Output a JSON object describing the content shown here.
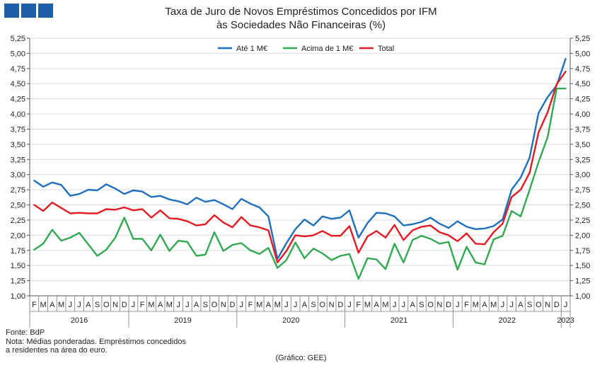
{
  "header": {
    "title_line1": "Taxa de Juro de Novos Empréstimos  Concedidos por IFM",
    "title_line2": "às Sociedades Não Financeiras (%)"
  },
  "footer": {
    "source": "Fonte: BdP",
    "note_line1": "Nota: Médias ponderadas. Empréstimos concedidos",
    "note_line2": "a residentes na área do euro.",
    "credit": "(Gráfico: GEE)"
  },
  "chart_data": {
    "type": "line",
    "ylim": [
      1.0,
      5.25
    ],
    "yticks": [
      "1,00",
      "1,25",
      "1,50",
      "1,75",
      "2,00",
      "2,25",
      "2,50",
      "2,75",
      "3,00",
      "3,25",
      "3,50",
      "3,75",
      "4,00",
      "4,25",
      "4,50",
      "4,75",
      "5,00",
      "5,25"
    ],
    "x_month_labels": [
      "F",
      "M",
      "A",
      "M",
      "J",
      "J",
      "A",
      "S",
      "O",
      "N",
      "D",
      "J",
      "F",
      "M",
      "A",
      "M",
      "J",
      "J",
      "A",
      "S",
      "O",
      "N",
      "D",
      "J",
      "F",
      "M",
      "A",
      "M",
      "J",
      "J",
      "A",
      "S",
      "O",
      "N",
      "D",
      "J",
      "F",
      "M",
      "A",
      "M",
      "J",
      "J",
      "A",
      "S",
      "O",
      "N",
      "D",
      "J",
      "F",
      "M",
      "A",
      "M",
      "J",
      "J",
      "A",
      "S",
      "O",
      "N",
      "D",
      "J"
    ],
    "x_year_groups": [
      {
        "label": "2016",
        "start": 0,
        "end": 10
      },
      {
        "label": "2019",
        "start": 11,
        "end": 22
      },
      {
        "label": "2020",
        "start": 23,
        "end": 34
      },
      {
        "label": "2021",
        "start": 35,
        "end": 46
      },
      {
        "label": "2022",
        "start": 47,
        "end": 58
      },
      {
        "label": "2023",
        "start": 59,
        "end": 59
      }
    ],
    "legend_position": "top-center",
    "series": [
      {
        "name": "Até 1 M€",
        "color": "#1f6fbf",
        "values": [
          2.9,
          2.8,
          2.87,
          2.83,
          2.65,
          2.68,
          2.75,
          2.74,
          2.84,
          2.77,
          2.68,
          2.74,
          2.72,
          2.63,
          2.65,
          2.59,
          2.56,
          2.51,
          2.62,
          2.55,
          2.58,
          2.51,
          2.43,
          2.6,
          2.52,
          2.46,
          2.31,
          1.61,
          1.87,
          2.1,
          2.26,
          2.16,
          2.31,
          2.27,
          2.29,
          2.41,
          1.96,
          2.2,
          2.37,
          2.36,
          2.31,
          2.16,
          2.18,
          2.22,
          2.29,
          2.19,
          2.12,
          2.23,
          2.14,
          2.1,
          2.11,
          2.15,
          2.26,
          2.75,
          2.95,
          3.28,
          4.02,
          4.28,
          4.47,
          4.91
        ]
      },
      {
        "name": "Acima de 1 M€",
        "color": "#33a852",
        "values": [
          1.76,
          1.86,
          2.09,
          1.91,
          1.96,
          2.04,
          1.85,
          1.66,
          1.76,
          1.96,
          2.29,
          1.94,
          1.94,
          1.75,
          2.01,
          1.74,
          1.91,
          1.89,
          1.66,
          1.68,
          2.05,
          1.74,
          1.84,
          1.87,
          1.75,
          1.69,
          1.79,
          1.46,
          1.59,
          1.88,
          1.62,
          1.78,
          1.7,
          1.59,
          1.66,
          1.69,
          1.28,
          1.62,
          1.6,
          1.44,
          1.86,
          1.55,
          1.92,
          1.99,
          1.94,
          1.86,
          1.89,
          1.43,
          1.81,
          1.55,
          1.52,
          1.93,
          1.99,
          2.4,
          2.31,
          2.75,
          3.21,
          3.62,
          4.42,
          4.42
        ]
      },
      {
        "name": "Total",
        "color": "#e31b23",
        "values": [
          2.5,
          2.4,
          2.54,
          2.45,
          2.36,
          2.37,
          2.36,
          2.36,
          2.43,
          2.42,
          2.46,
          2.41,
          2.43,
          2.29,
          2.41,
          2.28,
          2.27,
          2.23,
          2.16,
          2.18,
          2.33,
          2.21,
          2.13,
          2.3,
          2.16,
          2.13,
          2.08,
          1.55,
          1.74,
          2.0,
          1.98,
          2.0,
          2.07,
          1.99,
          1.99,
          2.15,
          1.71,
          1.98,
          2.07,
          1.96,
          2.17,
          1.92,
          2.08,
          2.14,
          2.16,
          2.05,
          2.0,
          1.9,
          2.03,
          1.86,
          1.85,
          2.05,
          2.19,
          2.63,
          2.75,
          3.03,
          3.7,
          4.03,
          4.49,
          4.7
        ]
      }
    ]
  }
}
